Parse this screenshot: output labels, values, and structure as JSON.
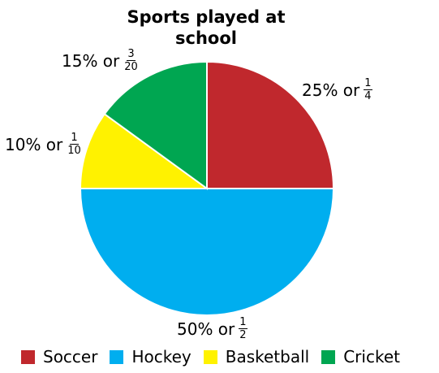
{
  "chart_data": {
    "type": "pie",
    "title": [
      "Sports played at",
      "school"
    ],
    "slices": [
      {
        "name": "Soccer",
        "value": 25,
        "color": "#c0282d",
        "percent_text": "25% or",
        "num": "1",
        "den": "4"
      },
      {
        "name": "Hockey",
        "value": 50,
        "color": "#00aeef",
        "percent_text": "50% or",
        "num": "1",
        "den": "2"
      },
      {
        "name": "Basketball",
        "value": 10,
        "color": "#fff200",
        "percent_text": "10% or",
        "num": "1",
        "den": "10"
      },
      {
        "name": "Cricket",
        "value": 15,
        "color": "#00a651",
        "percent_text": "15% or",
        "num": "3",
        "den": "20"
      }
    ],
    "legend_position": "bottom"
  }
}
